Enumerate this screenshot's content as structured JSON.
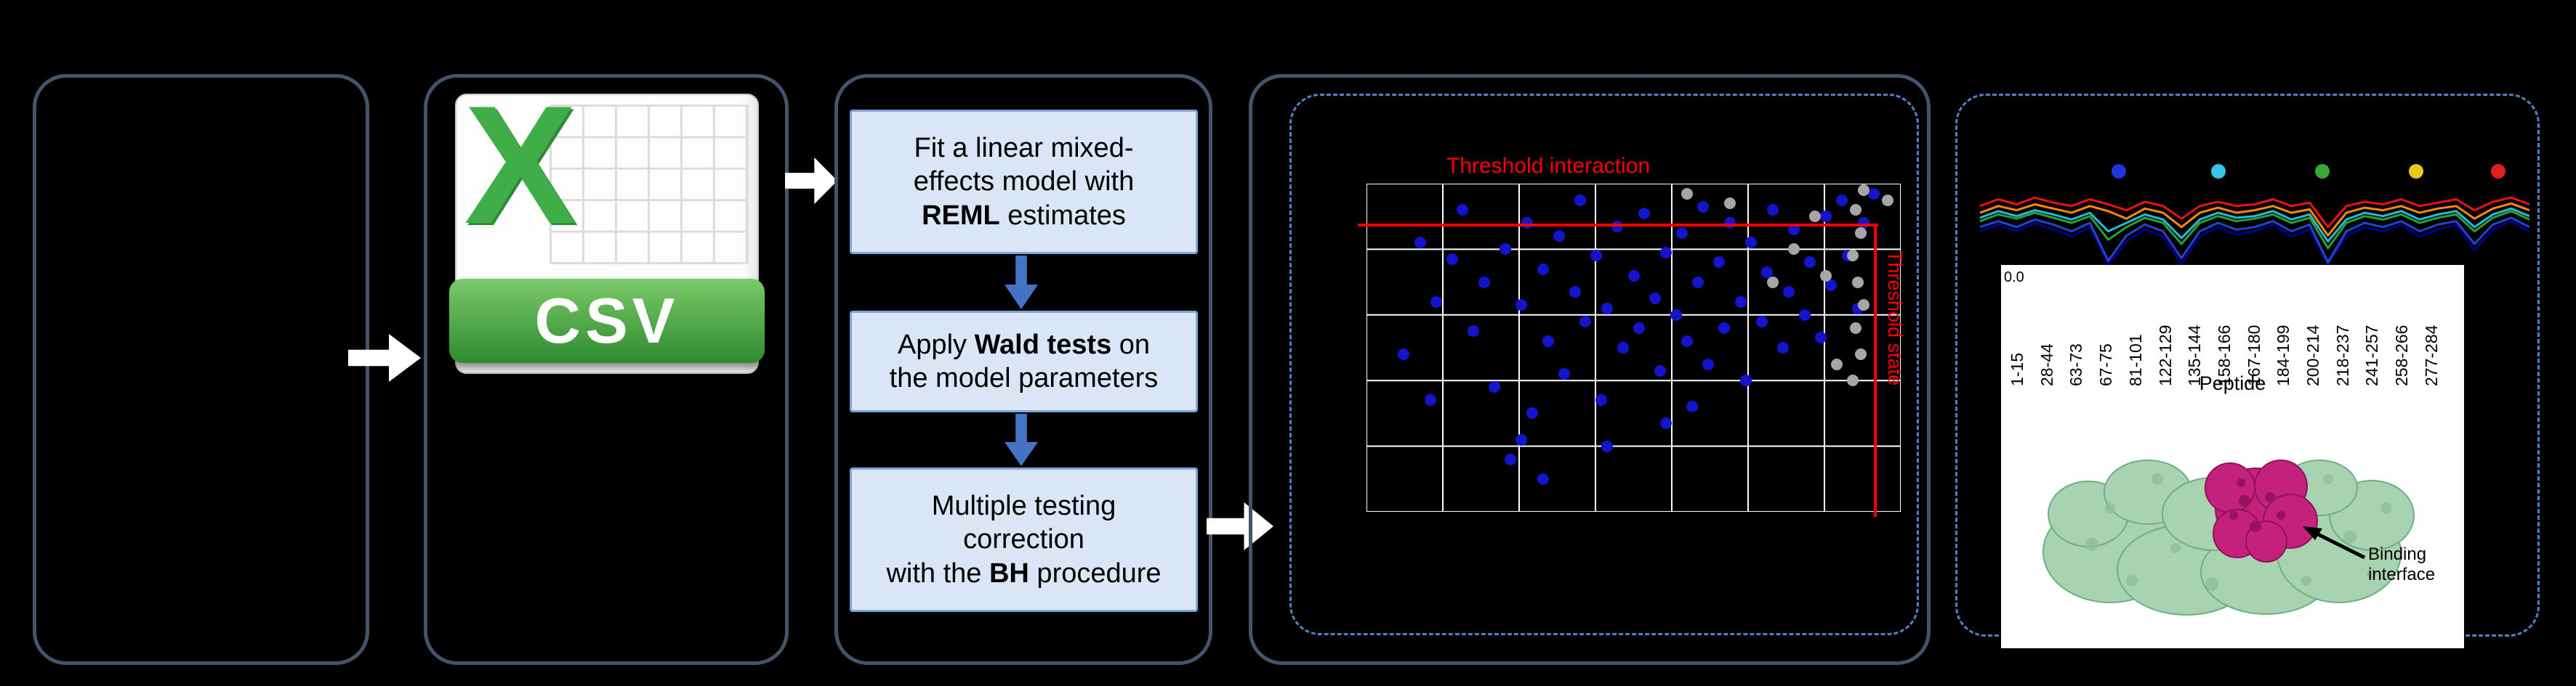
{
  "flow": {
    "boxes": [
      {
        "lines": [
          [
            {
              "t": "Fit a linear mixed-"
            }
          ],
          [
            {
              "t": "effects model with"
            }
          ],
          [
            {
              "t": "REML",
              "b": true
            },
            {
              "t": " estimates"
            }
          ]
        ]
      },
      {
        "lines": [
          [
            {
              "t": "Apply "
            },
            {
              "t": "Wald tests",
              "b": true
            },
            {
              "t": " on"
            }
          ],
          [
            {
              "t": "the model parameters"
            }
          ]
        ]
      },
      {
        "lines": [
          [
            {
              "t": "Multiple testing"
            }
          ],
          [
            {
              "t": "correction"
            }
          ],
          [
            {
              "t": "with the "
            },
            {
              "t": "BH",
              "b": true
            },
            {
              "t": " procedure"
            }
          ]
        ]
      }
    ]
  },
  "csv": {
    "letter": "X",
    "banner": "CSV"
  },
  "structure": {
    "annotation_line1": "Binding",
    "annotation_line2": "interface"
  },
  "chart_data": [
    {
      "type": "scatter",
      "title": "",
      "threshold_h_label": "Threshold interaction",
      "threshold_v_label": "Threshold state",
      "grid": {
        "cols": 7,
        "rows": 5
      },
      "threshold_color": "#ff0000",
      "point_colors": {
        "blue": "#1414cc",
        "gray": "#a6a6a6"
      },
      "points": {
        "blue": [
          [
            0.07,
            0.52
          ],
          [
            0.1,
            0.18
          ],
          [
            0.13,
            0.36
          ],
          [
            0.16,
            0.23
          ],
          [
            0.18,
            0.08
          ],
          [
            0.2,
            0.45
          ],
          [
            0.22,
            0.3
          ],
          [
            0.24,
            0.62
          ],
          [
            0.26,
            0.2
          ],
          [
            0.27,
            0.84
          ],
          [
            0.29,
            0.37
          ],
          [
            0.3,
            0.12
          ],
          [
            0.31,
            0.7
          ],
          [
            0.33,
            0.26
          ],
          [
            0.34,
            0.48
          ],
          [
            0.36,
            0.16
          ],
          [
            0.37,
            0.58
          ],
          [
            0.39,
            0.33
          ],
          [
            0.4,
            0.05
          ],
          [
            0.41,
            0.42
          ],
          [
            0.43,
            0.22
          ],
          [
            0.44,
            0.66
          ],
          [
            0.45,
            0.38
          ],
          [
            0.47,
            0.13
          ],
          [
            0.48,
            0.5
          ],
          [
            0.5,
            0.28
          ],
          [
            0.51,
            0.44
          ],
          [
            0.52,
            0.09
          ],
          [
            0.54,
            0.35
          ],
          [
            0.55,
            0.57
          ],
          [
            0.56,
            0.21
          ],
          [
            0.58,
            0.4
          ],
          [
            0.59,
            0.15
          ],
          [
            0.6,
            0.48
          ],
          [
            0.62,
            0.3
          ],
          [
            0.63,
            0.07
          ],
          [
            0.64,
            0.55
          ],
          [
            0.66,
            0.24
          ],
          [
            0.67,
            0.44
          ],
          [
            0.68,
            0.12
          ],
          [
            0.7,
            0.36
          ],
          [
            0.71,
            0.6
          ],
          [
            0.72,
            0.18
          ],
          [
            0.74,
            0.42
          ],
          [
            0.75,
            0.27
          ],
          [
            0.76,
            0.08
          ],
          [
            0.78,
            0.5
          ],
          [
            0.79,
            0.33
          ],
          [
            0.8,
            0.14
          ],
          [
            0.82,
            0.4
          ],
          [
            0.83,
            0.24
          ],
          [
            0.85,
            0.47
          ],
          [
            0.86,
            0.1
          ],
          [
            0.87,
            0.31
          ],
          [
            0.89,
            0.05
          ],
          [
            0.9,
            0.22
          ],
          [
            0.92,
            0.38
          ],
          [
            0.93,
            0.12
          ],
          [
            0.95,
            0.03
          ],
          [
            0.33,
            0.9
          ],
          [
            0.29,
            0.78
          ],
          [
            0.12,
            0.66
          ],
          [
            0.56,
            0.73
          ],
          [
            0.61,
            0.68
          ],
          [
            0.45,
            0.8
          ]
        ],
        "gray": [
          [
            0.93,
            0.02
          ],
          [
            0.915,
            0.08
          ],
          [
            0.925,
            0.15
          ],
          [
            0.91,
            0.22
          ],
          [
            0.92,
            0.3
          ],
          [
            0.93,
            0.37
          ],
          [
            0.915,
            0.44
          ],
          [
            0.925,
            0.52
          ],
          [
            0.91,
            0.6
          ],
          [
            0.84,
            0.1
          ],
          [
            0.8,
            0.2
          ],
          [
            0.76,
            0.3
          ],
          [
            0.68,
            0.06
          ],
          [
            0.6,
            0.03
          ],
          [
            0.86,
            0.28
          ],
          [
            0.88,
            0.55
          ],
          [
            0.975,
            0.05
          ]
        ]
      }
    },
    {
      "type": "line",
      "xlabel": "Peptide",
      "ytick": "0.0",
      "categories": [
        "1-15",
        "28-44",
        "63-73",
        "67-75",
        "81-101",
        "122-129",
        "135-144",
        "158-166",
        "167-180",
        "184-199",
        "200-214",
        "218-237",
        "241-257",
        "258-266",
        "277-284"
      ],
      "legend_dot_colors": [
        "#2233dd",
        "#33c6e8",
        "#39a839",
        "#e8c81e",
        "#dd2020"
      ],
      "series": [
        {
          "name": "navy",
          "color": "#00008b",
          "values": [
            0.6,
            0.52,
            0.6,
            0.5,
            0.58,
            0.66,
            0.55,
            0.99,
            0.72,
            0.58,
            0.66,
            0.99,
            0.66,
            0.55,
            0.64,
            0.6,
            0.52,
            0.66,
            0.58,
            0.99,
            0.66,
            0.55,
            0.6,
            0.52,
            0.66,
            0.58,
            0.52,
            0.82,
            0.58,
            0.48,
            0.6
          ]
        },
        {
          "name": "blue",
          "color": "#2244cc",
          "values": [
            0.55,
            0.48,
            0.55,
            0.46,
            0.52,
            0.6,
            0.5,
            0.95,
            0.65,
            0.52,
            0.6,
            0.92,
            0.6,
            0.5,
            0.58,
            0.55,
            0.48,
            0.6,
            0.52,
            0.97,
            0.6,
            0.5,
            0.55,
            0.48,
            0.6,
            0.52,
            0.48,
            0.75,
            0.52,
            0.44,
            0.55
          ]
        },
        {
          "name": "cyan",
          "color": "#22bbdd",
          "values": [
            0.44,
            0.36,
            0.42,
            0.35,
            0.4,
            0.46,
            0.38,
            0.6,
            0.5,
            0.4,
            0.46,
            0.68,
            0.46,
            0.38,
            0.44,
            0.42,
            0.36,
            0.46,
            0.4,
            0.72,
            0.46,
            0.38,
            0.42,
            0.36,
            0.46,
            0.4,
            0.36,
            0.55,
            0.4,
            0.33,
            0.42
          ]
        },
        {
          "name": "green",
          "color": "#2ca02c",
          "values": [
            0.48,
            0.4,
            0.45,
            0.38,
            0.44,
            0.5,
            0.42,
            0.7,
            0.55,
            0.44,
            0.5,
            0.75,
            0.5,
            0.42,
            0.48,
            0.45,
            0.4,
            0.5,
            0.44,
            0.8,
            0.5,
            0.42,
            0.46,
            0.4,
            0.5,
            0.44,
            0.4,
            0.6,
            0.44,
            0.36,
            0.46
          ]
        },
        {
          "name": "orange",
          "color": "#ff8800",
          "values": [
            0.38,
            0.3,
            0.35,
            0.28,
            0.33,
            0.38,
            0.3,
            0.36,
            0.45,
            0.33,
            0.38,
            0.55,
            0.38,
            0.32,
            0.38,
            0.35,
            0.3,
            0.38,
            0.34,
            0.65,
            0.38,
            0.32,
            0.35,
            0.3,
            0.38,
            0.33,
            0.3,
            0.45,
            0.33,
            0.27,
            0.35
          ]
        },
        {
          "name": "red",
          "color": "#ee1111",
          "values": [
            0.3,
            0.22,
            0.28,
            0.2,
            0.26,
            0.3,
            0.22,
            0.28,
            0.35,
            0.25,
            0.3,
            0.45,
            0.3,
            0.25,
            0.3,
            0.28,
            0.22,
            0.3,
            0.26,
            0.55,
            0.3,
            0.25,
            0.28,
            0.22,
            0.3,
            0.26,
            0.22,
            0.35,
            0.25,
            0.2,
            0.28
          ]
        }
      ]
    }
  ]
}
